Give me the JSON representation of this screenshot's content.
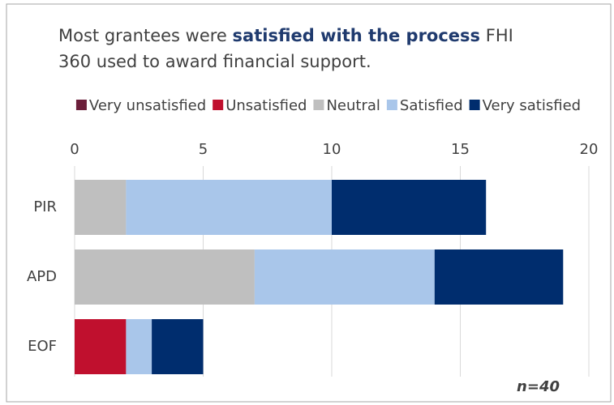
{
  "chart_data": {
    "type": "stacked_bar_horizontal",
    "title_parts": [
      "Most grantees were",
      "satisfied with the process",
      "FHI",
      "360 used to award financial support."
    ],
    "categories": [
      "PIR",
      "APD",
      "EOF"
    ],
    "series": [
      {
        "name": "Very unsatisfied",
        "color": "#6b1f3a",
        "values": [
          0,
          0,
          0
        ]
      },
      {
        "name": "Unsatisfied",
        "color": "#c0102e",
        "values": [
          0,
          0,
          2
        ]
      },
      {
        "name": "Neutral",
        "color": "#bfbfbf",
        "values": [
          2,
          7,
          0
        ]
      },
      {
        "name": "Satisfied",
        "color": "#a9c6ea",
        "values": [
          8,
          7,
          1
        ]
      },
      {
        "name": "Very satisfied",
        "color": "#002d6e",
        "values": [
          6,
          5,
          2
        ]
      }
    ],
    "xlim": [
      0,
      20
    ],
    "xticks": [
      0,
      5,
      10,
      15,
      20
    ],
    "grid": true,
    "legend": "top",
    "annotation": "n=40"
  }
}
